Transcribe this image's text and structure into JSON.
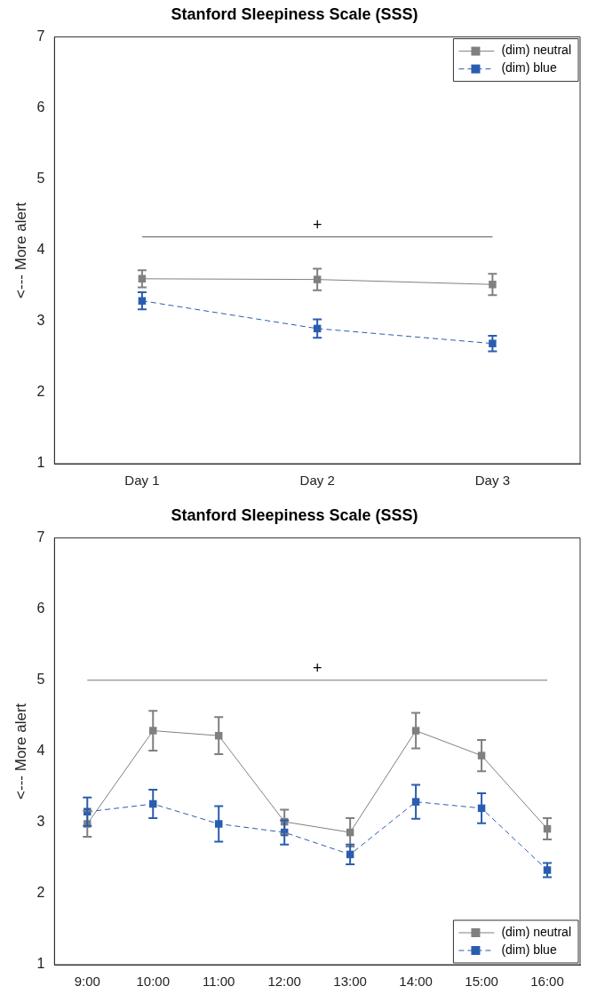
{
  "chart_data": [
    {
      "type": "line",
      "title": "Stanford Sleepiness Scale (SSS)",
      "ylabel": "<--- More alert",
      "categories": [
        "Day 1",
        "Day 2",
        "Day 3"
      ],
      "series": [
        {
          "name": "(dim) neutral",
          "color": "#808080",
          "line_style": "solid",
          "values": [
            3.6,
            3.59,
            3.52
          ],
          "errors": [
            0.12,
            0.15,
            0.15
          ]
        },
        {
          "name": "(dim) blue",
          "color": "#2a5db0",
          "line_style": "dashed",
          "values": [
            3.29,
            2.9,
            2.69
          ],
          "errors": [
            0.12,
            0.13,
            0.11
          ]
        }
      ],
      "ylim": [
        1,
        7
      ],
      "yticks": [
        1,
        2,
        3,
        4,
        5,
        6,
        7
      ],
      "marker": "square",
      "grid": false,
      "legend": "top right",
      "ref_lines": [
        {
          "axis": "y",
          "value": 4.19,
          "label": "+",
          "color": "#777777"
        }
      ]
    },
    {
      "type": "line",
      "title": "Stanford Sleepiness Scale (SSS)",
      "ylabel": "<--- More alert",
      "categories": [
        "9:00",
        "10:00",
        "11:00",
        "12:00",
        "13:00",
        "14:00",
        "15:00",
        "16:00"
      ],
      "series": [
        {
          "name": "(dim) neutral",
          "color": "#808080",
          "line_style": "solid",
          "values": [
            2.98,
            4.29,
            4.22,
            3.01,
            2.86,
            4.29,
            3.94,
            2.91
          ],
          "errors": [
            0.18,
            0.28,
            0.26,
            0.17,
            0.2,
            0.25,
            0.22,
            0.15
          ]
        },
        {
          "name": "(dim) blue",
          "color": "#2a5db0",
          "line_style": "dashed",
          "values": [
            3.15,
            3.26,
            2.98,
            2.86,
            2.55,
            3.29,
            3.2,
            2.33
          ],
          "errors": [
            0.2,
            0.2,
            0.25,
            0.17,
            0.14,
            0.24,
            0.21,
            0.1
          ]
        }
      ],
      "ylim": [
        1,
        7
      ],
      "yticks": [
        1,
        2,
        3,
        4,
        5,
        6,
        7
      ],
      "marker": "square",
      "grid": false,
      "legend": "bottom right",
      "ref_lines": [
        {
          "axis": "y",
          "value": 5.0,
          "label": "+",
          "color": "#777777"
        }
      ]
    }
  ]
}
